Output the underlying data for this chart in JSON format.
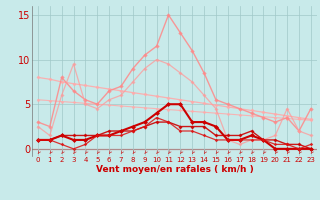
{
  "bg_color": "#c8eaea",
  "grid_color": "#a0c8c8",
  "x_min": 0,
  "x_max": 23,
  "y_min": -0.8,
  "y_max": 16,
  "yticks": [
    0,
    5,
    10,
    15
  ],
  "xlabel": "Vent moyen/en rafales ( km/h )",
  "xlabel_color": "#cc0000",
  "series": [
    {
      "x": [
        0,
        1,
        2,
        3,
        4,
        5,
        6,
        7,
        8,
        9,
        10,
        11,
        12,
        13,
        14,
        15,
        16,
        17,
        18,
        19,
        20,
        21,
        22,
        23
      ],
      "y": [
        8.0,
        7.8,
        7.5,
        7.3,
        7.1,
        6.9,
        6.7,
        6.5,
        6.3,
        6.1,
        5.9,
        5.7,
        5.5,
        5.3,
        5.1,
        4.9,
        4.7,
        4.5,
        4.3,
        4.1,
        3.9,
        3.7,
        3.5,
        3.3
      ],
      "color": "#ffaaaa",
      "lw": 0.9,
      "alpha": 0.9,
      "marker": "D",
      "ms": 2.0
    },
    {
      "x": [
        0,
        1,
        2,
        3,
        4,
        5,
        6,
        7,
        8,
        9,
        10,
        11,
        12,
        13,
        14,
        15,
        16,
        17,
        18,
        19,
        20,
        21,
        22,
        23
      ],
      "y": [
        5.5,
        5.4,
        5.3,
        5.2,
        5.1,
        5.0,
        4.9,
        4.8,
        4.7,
        4.6,
        4.5,
        4.4,
        4.3,
        4.2,
        4.1,
        4.0,
        3.9,
        3.8,
        3.7,
        3.6,
        3.5,
        3.4,
        3.3,
        3.2
      ],
      "color": "#ffaaaa",
      "lw": 0.8,
      "alpha": 0.85,
      "marker": "D",
      "ms": 1.8
    },
    {
      "x": [
        0,
        1,
        2,
        3,
        4,
        5,
        6,
        7,
        8,
        9,
        10,
        11,
        12,
        13,
        14,
        15,
        16,
        17,
        18,
        19,
        20,
        21,
        22,
        23
      ],
      "y": [
        3.0,
        2.5,
        8.0,
        6.5,
        5.5,
        5.0,
        6.5,
        7.0,
        9.0,
        10.5,
        11.5,
        15.0,
        13.0,
        11.0,
        8.5,
        5.5,
        5.0,
        4.5,
        4.0,
        3.5,
        3.0,
        3.5,
        2.0,
        4.5
      ],
      "color": "#ff8888",
      "lw": 1.0,
      "alpha": 0.85,
      "marker": "D",
      "ms": 2.2
    },
    {
      "x": [
        0,
        1,
        2,
        3,
        4,
        5,
        6,
        7,
        8,
        9,
        10,
        11,
        12,
        13,
        14,
        15,
        16,
        17,
        18,
        19,
        20,
        21,
        22,
        23
      ],
      "y": [
        2.5,
        1.5,
        6.0,
        9.5,
        5.0,
        4.5,
        5.5,
        6.0,
        7.5,
        9.0,
        10.0,
        9.5,
        8.5,
        7.5,
        6.0,
        4.5,
        1.0,
        0.5,
        1.0,
        1.0,
        1.5,
        4.5,
        2.0,
        1.5
      ],
      "color": "#ff9999",
      "lw": 0.9,
      "alpha": 0.75,
      "marker": "D",
      "ms": 2.0
    },
    {
      "x": [
        0,
        1,
        2,
        3,
        4,
        5,
        6,
        7,
        8,
        9,
        10,
        11,
        12,
        13,
        14,
        15,
        16,
        17,
        18,
        19,
        20,
        21,
        22,
        23
      ],
      "y": [
        1.0,
        1.0,
        1.5,
        1.0,
        1.0,
        1.5,
        1.5,
        2.0,
        2.5,
        3.0,
        4.0,
        5.0,
        5.0,
        3.0,
        3.0,
        2.5,
        1.0,
        1.0,
        1.5,
        1.0,
        0.0,
        0.0,
        0.0,
        0.0
      ],
      "color": "#cc0000",
      "lw": 1.5,
      "alpha": 1.0,
      "marker": "D",
      "ms": 2.5
    },
    {
      "x": [
        0,
        1,
        2,
        3,
        4,
        5,
        6,
        7,
        8,
        9,
        10,
        11,
        12,
        13,
        14,
        15,
        16,
        17,
        18,
        19,
        20,
        21,
        22,
        23
      ],
      "y": [
        1.0,
        1.0,
        1.5,
        1.5,
        1.5,
        1.5,
        2.0,
        2.0,
        2.0,
        2.5,
        3.0,
        3.0,
        2.5,
        2.5,
        2.5,
        1.5,
        1.5,
        1.5,
        2.0,
        1.0,
        1.0,
        0.5,
        0.5,
        0.0
      ],
      "color": "#cc0000",
      "lw": 1.0,
      "alpha": 0.9,
      "marker": "D",
      "ms": 2.0
    },
    {
      "x": [
        0,
        1,
        2,
        3,
        4,
        5,
        6,
        7,
        8,
        9,
        10,
        11,
        12,
        13,
        14,
        15,
        16,
        17,
        18,
        19,
        20,
        21,
        22,
        23
      ],
      "y": [
        1.0,
        1.0,
        0.5,
        0.0,
        0.5,
        1.5,
        1.5,
        1.5,
        2.0,
        2.5,
        3.5,
        3.0,
        2.0,
        2.0,
        1.5,
        1.0,
        1.0,
        1.0,
        1.0,
        1.0,
        0.5,
        0.5,
        0.0,
        0.5
      ],
      "color": "#dd1111",
      "lw": 0.9,
      "alpha": 0.85,
      "marker": "D",
      "ms": 1.8
    }
  ],
  "tick_label_color": "#cc0000",
  "tick_label_size": 5.0,
  "ytick_label_size": 7.0
}
